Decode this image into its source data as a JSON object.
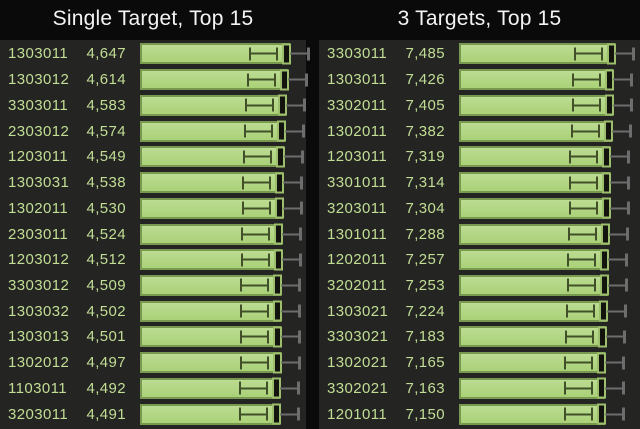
{
  "colors": {
    "page_background": "#0a0a0a",
    "panel_background": "#242423",
    "bar_fill": "#b3d785",
    "bar_border": "#7a9950",
    "inner_whisker": "#42502a",
    "outer_whisker": "#6d6d6d",
    "end_marker_fill": "#14140f",
    "end_marker_border": "#9dbe6c",
    "label_text": "#c1de94",
    "title_text": "#f4f4f4"
  },
  "chart_data": [
    {
      "type": "bar",
      "orientation": "horizontal",
      "title": "Single Target, Top 15",
      "legend": "none",
      "grid": false,
      "sorted": "descending",
      "error_bars": "inner dark-green whisker inside bar end, outer gray whisker beyond bar end",
      "categories": [
        "1303011",
        "1303012",
        "3303011",
        "2303012",
        "1203011",
        "1303031",
        "1302011",
        "2303011",
        "1203012",
        "3303012",
        "1303032",
        "1303013",
        "1302012",
        "1103011",
        "3203011"
      ],
      "values": [
        4647,
        4614,
        4583,
        4574,
        4549,
        4538,
        4530,
        4524,
        4512,
        4509,
        4502,
        4501,
        4497,
        4492,
        4491
      ],
      "value_labels": [
        "4,647",
        "4,614",
        "4,583",
        "4,574",
        "4,549",
        "4,538",
        "4,530",
        "4,524",
        "4,512",
        "4,509",
        "4,502",
        "4,501",
        "4,497",
        "4,492",
        "4,491"
      ]
    },
    {
      "type": "bar",
      "orientation": "horizontal",
      "title": "3 Targets, Top 15",
      "legend": "none",
      "grid": false,
      "sorted": "descending",
      "error_bars": "inner dark-green whisker inside bar end, outer gray whisker beyond bar end",
      "categories": [
        "3303011",
        "1303011",
        "3302011",
        "1302011",
        "1203011",
        "3301011",
        "3203011",
        "1301011",
        "1202011",
        "3202011",
        "1303021",
        "3303021",
        "1302021",
        "3302021",
        "1201011"
      ],
      "values": [
        7485,
        7426,
        7405,
        7382,
        7319,
        7314,
        7304,
        7288,
        7257,
        7253,
        7224,
        7183,
        7165,
        7163,
        7150
      ],
      "value_labels": [
        "7,485",
        "7,426",
        "7,405",
        "7,382",
        "7,319",
        "7,314",
        "7,304",
        "7,288",
        "7,257",
        "7,253",
        "7,224",
        "7,183",
        "7,165",
        "7,163",
        "7,150"
      ]
    }
  ]
}
